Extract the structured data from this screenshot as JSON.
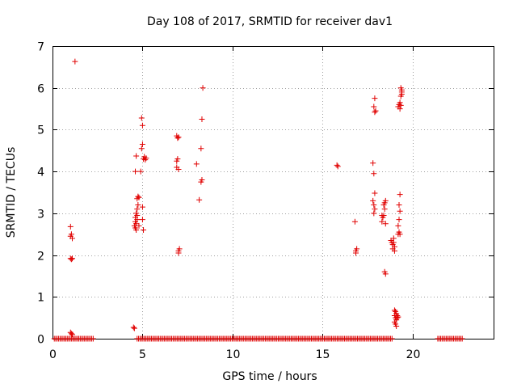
{
  "chart_data": {
    "type": "scatter",
    "title": "Day 108 of 2017, SRMTID for receiver dav1",
    "xlabel": "GPS time / hours",
    "ylabel": "SRMTID / TECUs",
    "xlim": [
      0,
      24.5
    ],
    "ylim": [
      0,
      7
    ],
    "xticks": [
      0,
      5,
      10,
      15,
      20
    ],
    "yticks": [
      0,
      1,
      2,
      3,
      4,
      5,
      6,
      7
    ],
    "grid": true,
    "marker": "+",
    "color": "#e00000",
    "series": [
      {
        "name": "SRMTID",
        "zero_ranges": [
          [
            0.1,
            2.3
          ],
          [
            4.7,
            18.9
          ],
          [
            21.4,
            22.8
          ]
        ],
        "zero_step": 0.08,
        "points": [
          [
            1.0,
            0.15
          ],
          [
            1.05,
            0.12
          ],
          [
            1.1,
            0.1
          ],
          [
            1.0,
            1.92
          ],
          [
            1.05,
            1.9
          ],
          [
            1.1,
            1.92
          ],
          [
            1.0,
            2.45
          ],
          [
            1.05,
            2.5
          ],
          [
            1.1,
            2.4
          ],
          [
            1.0,
            2.68
          ],
          [
            1.25,
            6.63
          ],
          [
            4.5,
            0.27
          ],
          [
            4.55,
            0.25
          ],
          [
            4.55,
            2.7
          ],
          [
            4.6,
            2.8
          ],
          [
            4.65,
            2.75
          ],
          [
            4.7,
            2.85
          ],
          [
            4.6,
            2.9
          ],
          [
            4.65,
            3.0
          ],
          [
            4.7,
            3.1
          ],
          [
            4.75,
            3.2
          ],
          [
            4.7,
            3.35
          ],
          [
            4.75,
            3.4
          ],
          [
            4.8,
            3.38
          ],
          [
            4.65,
            2.6
          ],
          [
            4.6,
            2.65
          ],
          [
            4.7,
            2.95
          ],
          [
            4.8,
            2.7
          ],
          [
            4.6,
            4.0
          ],
          [
            4.65,
            4.37
          ],
          [
            4.9,
            4.0
          ],
          [
            4.95,
            5.28
          ],
          [
            5.0,
            5.1
          ],
          [
            4.95,
            4.55
          ],
          [
            5.0,
            4.65
          ],
          [
            5.05,
            4.3
          ],
          [
            5.1,
            4.35
          ],
          [
            5.15,
            4.28
          ],
          [
            5.2,
            4.32
          ],
          [
            5.0,
            3.15
          ],
          [
            5.05,
            2.6
          ],
          [
            5.0,
            2.85
          ],
          [
            6.9,
            4.85
          ],
          [
            6.95,
            4.8
          ],
          [
            7.0,
            4.82
          ],
          [
            6.9,
            4.25
          ],
          [
            6.95,
            4.3
          ],
          [
            7.0,
            4.05
          ],
          [
            6.9,
            4.1
          ],
          [
            7.0,
            2.1
          ],
          [
            7.05,
            2.15
          ],
          [
            7.0,
            2.05
          ],
          [
            8.0,
            4.18
          ],
          [
            8.15,
            3.32
          ],
          [
            8.25,
            3.75
          ],
          [
            8.3,
            3.8
          ],
          [
            8.25,
            4.55
          ],
          [
            8.3,
            5.25
          ],
          [
            8.35,
            6.0
          ],
          [
            15.8,
            4.15
          ],
          [
            15.85,
            4.12
          ],
          [
            16.8,
            2.8
          ],
          [
            16.85,
            2.1
          ],
          [
            16.9,
            2.15
          ],
          [
            16.85,
            2.05
          ],
          [
            17.8,
            4.2
          ],
          [
            17.85,
            3.95
          ],
          [
            17.9,
            3.48
          ],
          [
            17.8,
            3.3
          ],
          [
            17.85,
            3.2
          ],
          [
            17.9,
            3.1
          ],
          [
            17.85,
            3.0
          ],
          [
            17.9,
            5.75
          ],
          [
            17.85,
            5.55
          ],
          [
            17.9,
            5.42
          ],
          [
            17.95,
            5.45
          ],
          [
            18.3,
            2.95
          ],
          [
            18.35,
            2.9
          ],
          [
            18.4,
            2.95
          ],
          [
            18.3,
            2.8
          ],
          [
            18.4,
            3.2
          ],
          [
            18.45,
            3.25
          ],
          [
            18.5,
            3.3
          ],
          [
            18.45,
            3.1
          ],
          [
            18.5,
            2.75
          ],
          [
            18.45,
            1.6
          ],
          [
            18.5,
            1.55
          ],
          [
            18.8,
            2.35
          ],
          [
            18.85,
            2.3
          ],
          [
            18.9,
            2.25
          ],
          [
            18.95,
            2.3
          ],
          [
            19.0,
            2.2
          ],
          [
            18.9,
            2.15
          ],
          [
            19.0,
            2.1
          ],
          [
            18.95,
            2.4
          ],
          [
            19.0,
            0.68
          ],
          [
            19.05,
            0.65
          ],
          [
            19.1,
            0.6
          ],
          [
            19.0,
            0.55
          ],
          [
            19.05,
            0.5
          ],
          [
            19.1,
            0.45
          ],
          [
            19.15,
            0.55
          ],
          [
            19.0,
            0.4
          ],
          [
            19.05,
            0.35
          ],
          [
            19.1,
            0.3
          ],
          [
            19.15,
            0.5
          ],
          [
            19.2,
            0.52
          ],
          [
            19.2,
            2.5
          ],
          [
            19.25,
            2.55
          ],
          [
            19.3,
            2.5
          ],
          [
            19.2,
            2.7
          ],
          [
            19.25,
            2.85
          ],
          [
            19.3,
            3.05
          ],
          [
            19.25,
            3.2
          ],
          [
            19.3,
            3.45
          ],
          [
            19.2,
            5.55
          ],
          [
            19.25,
            5.6
          ],
          [
            19.3,
            5.65
          ],
          [
            19.35,
            5.58
          ],
          [
            19.3,
            5.5
          ],
          [
            19.35,
            5.8
          ],
          [
            19.4,
            5.85
          ],
          [
            19.4,
            5.9
          ],
          [
            19.35,
            6.0
          ],
          [
            19.4,
            5.95
          ]
        ]
      }
    ]
  }
}
